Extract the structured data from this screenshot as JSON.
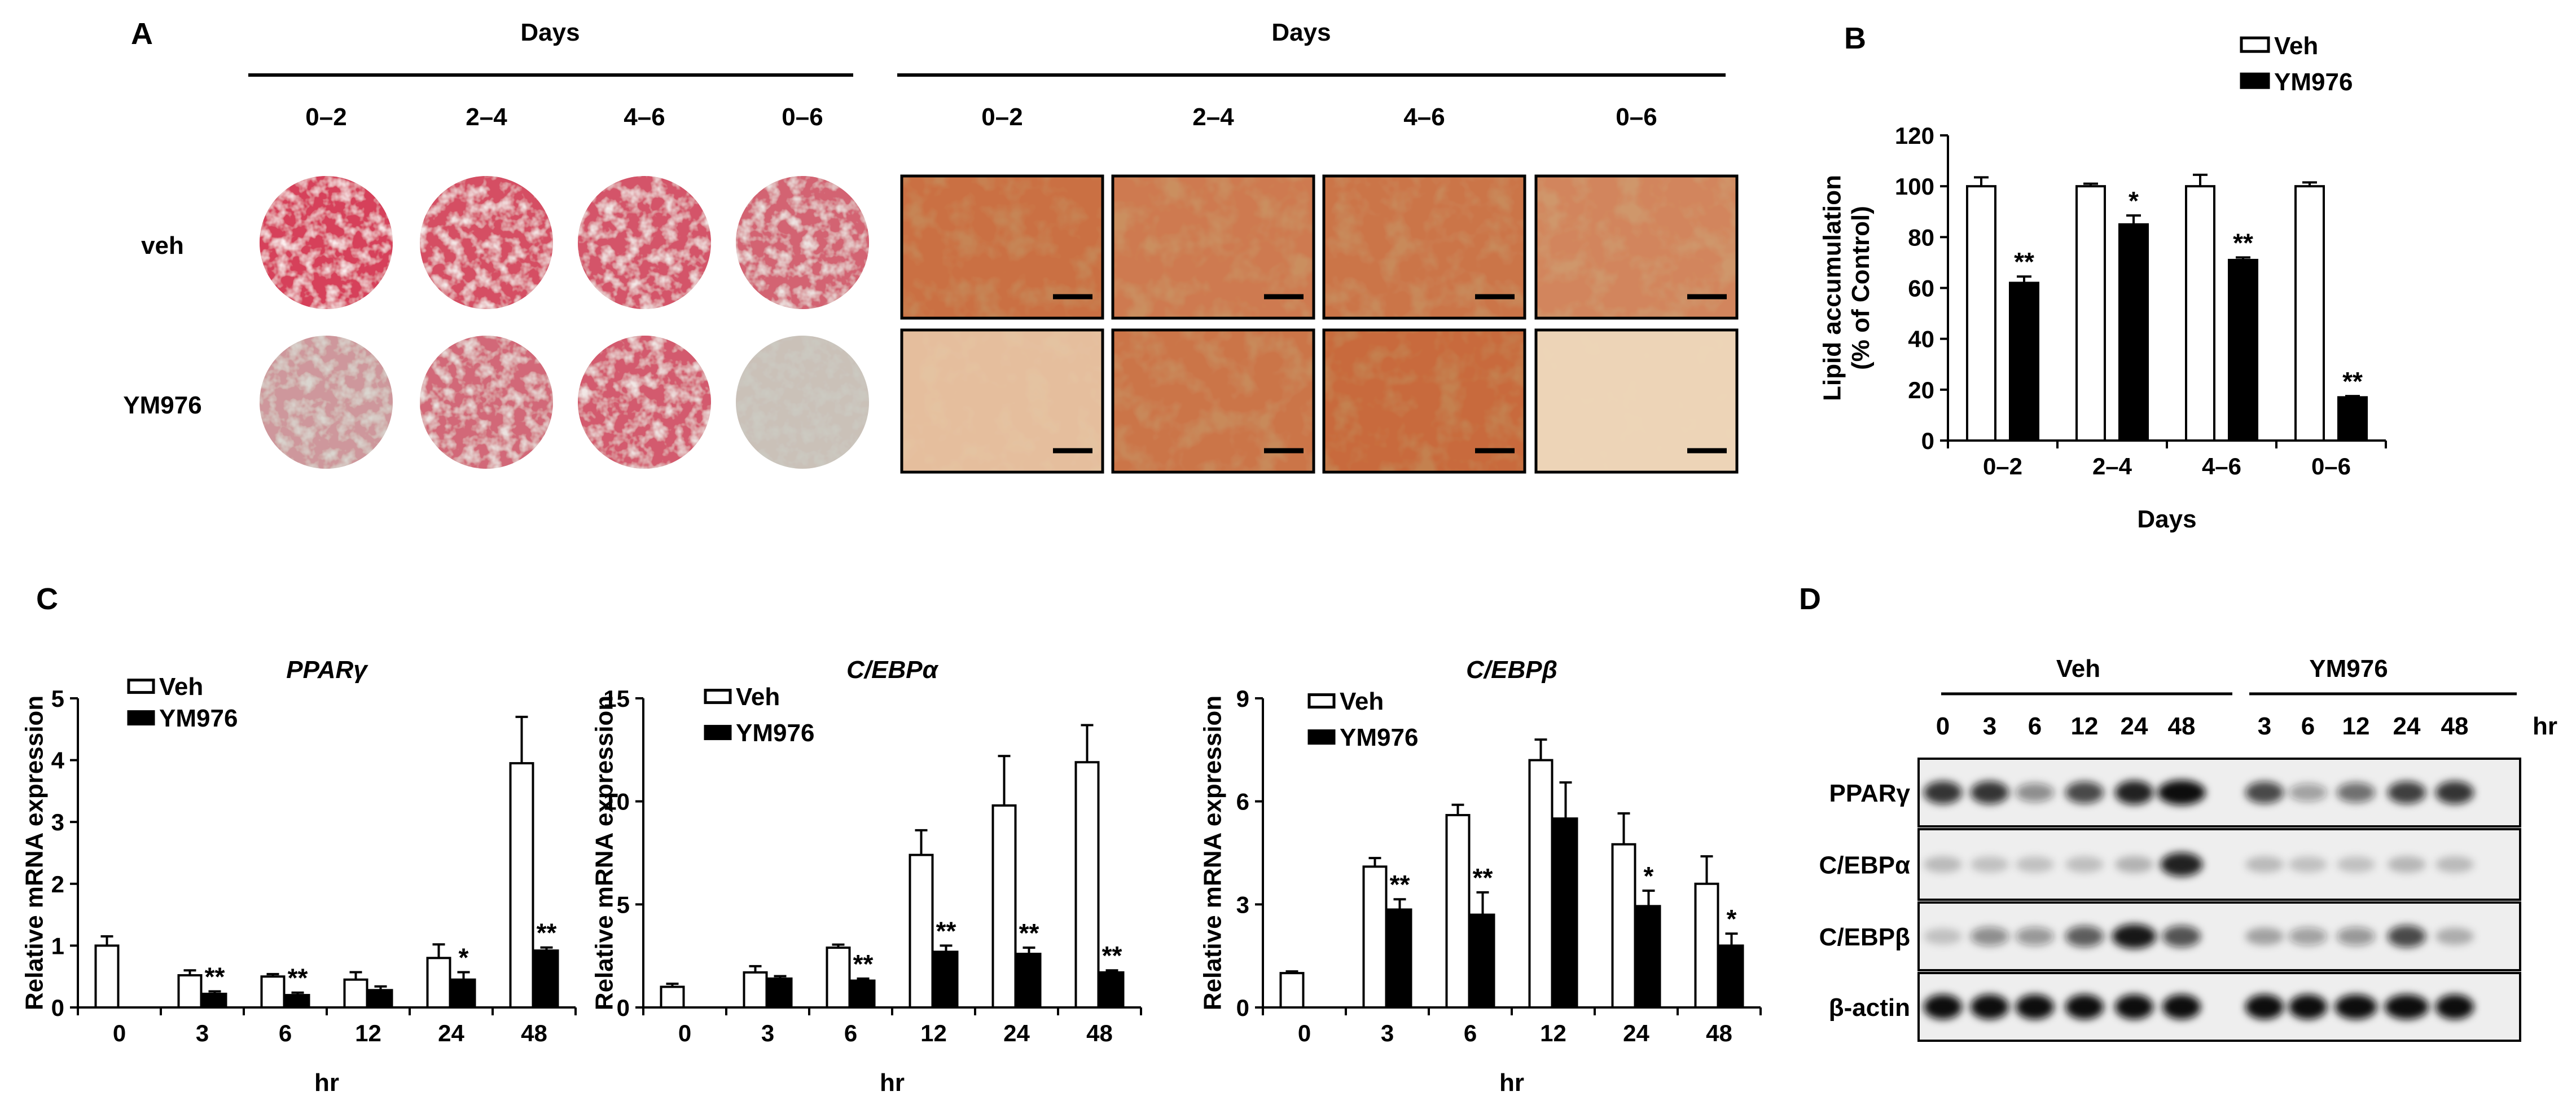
{
  "figure": {
    "panel_a": {
      "letter": "A",
      "plate_header": "Days",
      "micro_header": "Days",
      "plate_columns": [
        "0–2",
        "2–4",
        "4–6",
        "0–6"
      ],
      "micro_columns": [
        "0–2",
        "2–4",
        "4–6",
        "0–6"
      ],
      "rows": [
        "veh",
        "YM976"
      ]
    },
    "panel_b": {
      "letter": "B"
    },
    "panel_c": {
      "letter": "C"
    },
    "panel_d": {
      "letter": "D",
      "group_veh": "Veh",
      "group_ym": "YM976",
      "lanes": [
        "0",
        "3",
        "6",
        "12",
        "24",
        "48",
        "3",
        "6",
        "12",
        "24",
        "48"
      ],
      "unit": "hr",
      "blots": [
        "PPARγ",
        "C/EBPα",
        "C/EBPβ",
        "β-actin"
      ]
    }
  },
  "colors": {
    "veh": "#ffffff",
    "ym976": "#000000",
    "plate_red": "#d6405a",
    "micro_bg": "#efd9bd"
  },
  "chart_data": [
    {
      "id": "B",
      "type": "bar",
      "categories": [
        "0–2",
        "2–4",
        "4–6",
        "0–6"
      ],
      "series": [
        {
          "name": "Veh",
          "values": [
            100,
            100,
            100,
            100
          ],
          "errors": [
            3.5,
            1,
            4.5,
            1.5
          ]
        },
        {
          "name": "YM976",
          "values": [
            62,
            85,
            71,
            17
          ],
          "errors": [
            2.5,
            3.5,
            1,
            0.5
          ]
        }
      ],
      "significance": {
        "YM976": [
          "**",
          "*",
          "**",
          "**"
        ]
      },
      "xlabel": "Days",
      "ylabel": [
        "Lipid accumulation",
        "(% of Control)"
      ],
      "ylim": [
        0,
        120
      ],
      "yticks": [
        "0",
        "20",
        "40",
        "60",
        "80",
        "100",
        "120"
      ],
      "legend": "top-right"
    },
    {
      "id": "C1",
      "type": "bar",
      "title": "PPARγ",
      "categories": [
        "0",
        "3",
        "6",
        "12",
        "24",
        "48"
      ],
      "series": [
        {
          "name": "Veh",
          "values": [
            1.0,
            0.52,
            0.5,
            0.45,
            0.8,
            3.95
          ],
          "errors": [
            0.15,
            0.08,
            0.04,
            0.12,
            0.22,
            0.75
          ]
        },
        {
          "name": "YM976",
          "values": [
            null,
            0.22,
            0.2,
            0.28,
            0.45,
            0.92
          ],
          "errors": [
            null,
            0.04,
            0.04,
            0.06,
            0.12,
            0.05
          ]
        }
      ],
      "significance": {
        "YM976": [
          "",
          "**",
          "**",
          "",
          "*",
          "**"
        ]
      },
      "xlabel": "hr",
      "ylabel": "Relative mRNA expression",
      "ylim": [
        0,
        5
      ],
      "yticks": [
        "0",
        "1",
        "2",
        "3",
        "4",
        "5"
      ],
      "legend": "top-left"
    },
    {
      "id": "C2",
      "type": "bar",
      "title": "C/EBPα",
      "categories": [
        "0",
        "3",
        "6",
        "12",
        "24",
        "48"
      ],
      "series": [
        {
          "name": "Veh",
          "values": [
            1.0,
            1.7,
            2.9,
            7.4,
            9.8,
            11.9
          ],
          "errors": [
            0.15,
            0.3,
            0.15,
            1.2,
            2.4,
            1.8
          ]
        },
        {
          "name": "YM976",
          "values": [
            null,
            1.4,
            1.3,
            2.7,
            2.6,
            1.7
          ],
          "errors": [
            null,
            0.12,
            0.1,
            0.3,
            0.3,
            0.1
          ]
        }
      ],
      "significance": {
        "YM976": [
          "",
          "",
          "**",
          "**",
          "**",
          "**"
        ]
      },
      "xlabel": "hr",
      "ylabel": "Relative mRNA expression",
      "ylim": [
        0,
        15
      ],
      "yticks": [
        "0",
        "5",
        "10",
        "15"
      ],
      "legend": "top-left"
    },
    {
      "id": "C3",
      "type": "bar",
      "title": "C/EBPβ",
      "categories": [
        "0",
        "3",
        "6",
        "12",
        "24",
        "48"
      ],
      "series": [
        {
          "name": "Veh",
          "values": [
            1.0,
            4.1,
            5.6,
            7.2,
            4.75,
            3.6
          ],
          "errors": [
            0.05,
            0.25,
            0.3,
            0.6,
            0.9,
            0.8
          ]
        },
        {
          "name": "YM976",
          "values": [
            null,
            2.85,
            2.7,
            5.5,
            2.95,
            1.8
          ],
          "errors": [
            null,
            0.3,
            0.65,
            1.05,
            0.45,
            0.35
          ]
        }
      ],
      "significance": {
        "YM976": [
          "",
          "**",
          "**",
          "",
          "*",
          "*"
        ]
      },
      "xlabel": "hr",
      "ylabel": "Relative mRNA expression",
      "ylim": [
        0,
        9
      ],
      "yticks": [
        "0",
        "3",
        "6",
        "9"
      ],
      "legend": "top-left"
    }
  ]
}
